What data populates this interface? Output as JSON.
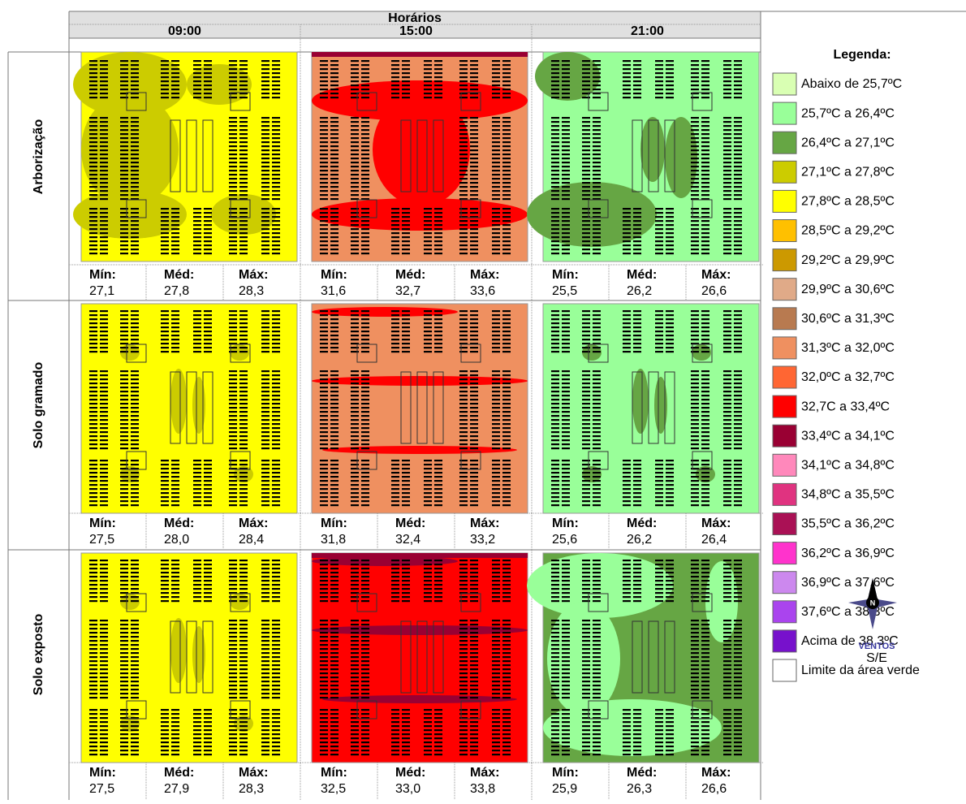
{
  "header": {
    "title": "Horários",
    "times": [
      "09:00",
      "15:00",
      "21:00"
    ]
  },
  "stat_labels": [
    "Mín:",
    "Méd:",
    "Máx:"
  ],
  "rows": [
    {
      "label": "Arborização",
      "stats": [
        [
          "27,1",
          "27,8",
          "28,3"
        ],
        [
          "31,6",
          "32,7",
          "33,6"
        ],
        [
          "25,5",
          "26,2",
          "26,6"
        ]
      ]
    },
    {
      "label": "Solo gramado",
      "stats": [
        [
          "27,5",
          "28,0",
          "28,4"
        ],
        [
          "31,8",
          "32,4",
          "33,2"
        ],
        [
          "25,6",
          "26,2",
          "26,4"
        ]
      ]
    },
    {
      "label": "Solo exposto",
      "stats": [
        [
          "27,5",
          "27,9",
          "28,3"
        ],
        [
          "32,5",
          "33,0",
          "33,8"
        ],
        [
          "25,9",
          "26,3",
          "26,6"
        ]
      ]
    }
  ],
  "legend": {
    "title": "Legenda:",
    "items": [
      {
        "label": "Abaixo de 25,7ºC",
        "color": "#d9ffb3"
      },
      {
        "label": "25,7ºC a 26,4ºC",
        "color": "#99ff99"
      },
      {
        "label": "26,4ºC a 27,1ºC",
        "color": "#66a644"
      },
      {
        "label": "27,1ºC a 27,8ºC",
        "color": "#cccc00"
      },
      {
        "label": "27,8ºC a 28,5ºC",
        "color": "#ffff00"
      },
      {
        "label": "28,5ºC a 29,2ºC",
        "color": "#ffc000"
      },
      {
        "label": "29,2ºC a 29,9ºC",
        "color": "#cc9900"
      },
      {
        "label": "29,9ºC a 30,6ºC",
        "color": "#e0aa88"
      },
      {
        "label": "30,6ºC a 31,3ºC",
        "color": "#b87a50"
      },
      {
        "label": "31,3ºC a 32,0ºC",
        "color": "#ef9060"
      },
      {
        "label": "32,0ºC a 32,7ºC",
        "color": "#ff6633"
      },
      {
        "label": "32,7C a 33,4ºC",
        "color": "#ff0000"
      },
      {
        "label": "33,4ºC a 34,1ºC",
        "color": "#990033"
      },
      {
        "label": "34,1ºC a 34,8ºC",
        "color": "#ff88bb"
      },
      {
        "label": "34,8ºC a 35,5ºC",
        "color": "#e03380"
      },
      {
        "label": "35,5ºC a 36,2ºC",
        "color": "#aa1155"
      },
      {
        "label": "36,2ºC a 36,9ºC",
        "color": "#ff33cc"
      },
      {
        "label": "36,9ºC a 37,6ºC",
        "color": "#cc88ee"
      },
      {
        "label": "37,6ºC a 38,3ºC",
        "color": "#aa44ee"
      },
      {
        "label": "Acima de 38,3ºC",
        "color": "#7711cc"
      },
      {
        "label": "Limite da área verde",
        "color": "#ffffff"
      }
    ]
  },
  "compass": {
    "north": "N",
    "label": "VENTOS",
    "direction": "S/E"
  }
}
